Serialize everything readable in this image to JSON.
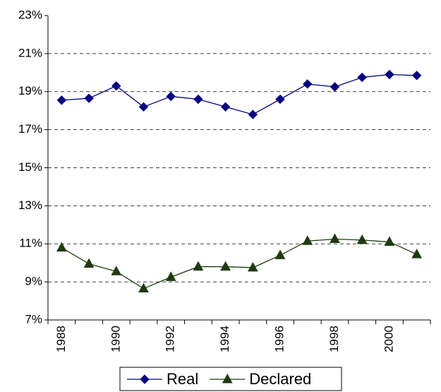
{
  "chart_data": {
    "type": "line",
    "categories": [
      "1988",
      null,
      "1990",
      null,
      "1992",
      null,
      "1994",
      null,
      "1996",
      null,
      "1998",
      null,
      "2000",
      null
    ],
    "series": [
      {
        "name": "Real",
        "color": "#000080",
        "marker": "diamond",
        "values": [
          18.55,
          18.65,
          19.3,
          18.2,
          18.75,
          18.6,
          18.2,
          17.8,
          18.6,
          19.4,
          19.25,
          19.75,
          19.9,
          19.85
        ]
      },
      {
        "name": "Declared",
        "color": "#1f3a10",
        "marker": "triangle",
        "values": [
          10.8,
          9.95,
          9.55,
          8.65,
          9.25,
          9.8,
          9.8,
          9.75,
          10.4,
          11.15,
          11.25,
          11.2,
          11.1,
          10.45
        ]
      }
    ],
    "ylim": [
      7,
      23
    ],
    "yticks": [
      {
        "value": 7,
        "label": "7%"
      },
      {
        "value": 9,
        "label": "9%"
      },
      {
        "value": 11,
        "label": "11%"
      },
      {
        "value": 13,
        "label": "13%"
      },
      {
        "value": 15,
        "label": "15%"
      },
      {
        "value": 17,
        "label": "17%"
      },
      {
        "value": 19,
        "label": "19%"
      },
      {
        "value": 21,
        "label": "21%"
      },
      {
        "value": 23,
        "label": "23%"
      }
    ],
    "grid": true,
    "legend": "bottom"
  }
}
